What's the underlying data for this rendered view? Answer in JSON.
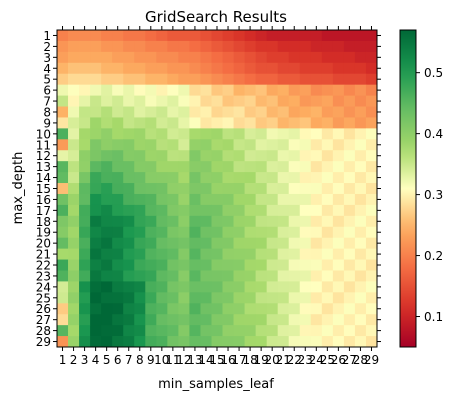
{
  "chart_data": {
    "type": "heatmap",
    "title": "GridSearch Results",
    "xlabel": "min_samples_leaf",
    "ylabel": "max_depth",
    "x": [
      1,
      2,
      3,
      4,
      5,
      6,
      7,
      8,
      9,
      10,
      11,
      12,
      13,
      14,
      15,
      16,
      17,
      18,
      19,
      20,
      21,
      22,
      23,
      24,
      25,
      26,
      27,
      28,
      29
    ],
    "y": [
      1,
      2,
      3,
      4,
      5,
      6,
      7,
      8,
      9,
      10,
      11,
      12,
      13,
      14,
      15,
      16,
      17,
      18,
      19,
      20,
      21,
      22,
      23,
      24,
      25,
      26,
      27,
      28,
      29
    ],
    "colormap": "RdYlGn",
    "vmin": 0.05,
    "vmax": 0.57,
    "colorbar_ticks": [
      0.1,
      0.2,
      0.3,
      0.4,
      0.5
    ],
    "colorbar_tick_labels": [
      "0.1",
      "0.2",
      "0.3",
      "0.4",
      "0.5"
    ],
    "row_profiles": [
      [
        0.2,
        0.21,
        0.21,
        0.21,
        0.2,
        0.2,
        0.19,
        0.19,
        0.18,
        0.17,
        0.16,
        0.16,
        0.16,
        0.15,
        0.14,
        0.13,
        0.12,
        0.11,
        0.1,
        0.09,
        0.09,
        0.09,
        0.09,
        0.09,
        0.08,
        0.08,
        0.08,
        0.08,
        0.08
      ],
      [
        0.22,
        0.23,
        0.23,
        0.23,
        0.22,
        0.22,
        0.21,
        0.21,
        0.2,
        0.2,
        0.19,
        0.19,
        0.18,
        0.17,
        0.16,
        0.15,
        0.14,
        0.13,
        0.12,
        0.12,
        0.11,
        0.11,
        0.11,
        0.1,
        0.1,
        0.1,
        0.09,
        0.09,
        0.09
      ],
      [
        0.23,
        0.24,
        0.24,
        0.24,
        0.24,
        0.23,
        0.23,
        0.22,
        0.22,
        0.21,
        0.21,
        0.2,
        0.2,
        0.19,
        0.18,
        0.17,
        0.16,
        0.15,
        0.14,
        0.13,
        0.13,
        0.12,
        0.12,
        0.12,
        0.11,
        0.11,
        0.11,
        0.1,
        0.1
      ],
      [
        0.25,
        0.26,
        0.26,
        0.26,
        0.25,
        0.25,
        0.24,
        0.24,
        0.23,
        0.23,
        0.22,
        0.22,
        0.21,
        0.2,
        0.19,
        0.18,
        0.17,
        0.16,
        0.15,
        0.15,
        0.14,
        0.14,
        0.13,
        0.13,
        0.13,
        0.12,
        0.12,
        0.12,
        0.11
      ],
      [
        0.27,
        0.28,
        0.28,
        0.28,
        0.27,
        0.27,
        0.26,
        0.26,
        0.25,
        0.25,
        0.24,
        0.23,
        0.23,
        0.22,
        0.21,
        0.2,
        0.19,
        0.18,
        0.17,
        0.17,
        0.16,
        0.16,
        0.15,
        0.15,
        0.15,
        0.14,
        0.14,
        0.14,
        0.13
      ]
    ]
  }
}
